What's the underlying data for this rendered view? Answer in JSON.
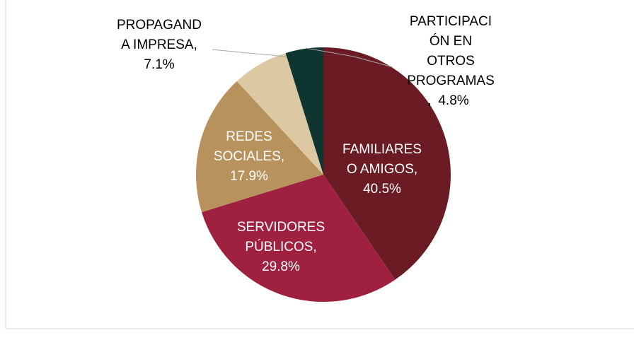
{
  "chart_data": {
    "type": "pie",
    "categories": [
      "FAMILIARES\nO AMIGOS,",
      "SERVIDORES\nPÚBLICOS,",
      "REDES\nSOCIALES,",
      "PROPAGAND\nA IMPRESA,",
      "PARTICIPACI\nÓN EN\nOTROS\nPROGRAMAS\n,"
    ],
    "values": [
      40.5,
      29.8,
      17.9,
      7.1,
      4.8
    ],
    "value_labels": [
      "40.5%",
      "29.8%",
      "17.9%",
      "7.1%",
      "4.8%"
    ],
    "colors": [
      "#6a1b23",
      "#a0203f",
      "#b8925c",
      "#dcc8a2",
      "#0f3531"
    ],
    "label_colors": [
      "#ffffff",
      "#ffffff",
      "#ffffff",
      "#000000",
      "#000000"
    ]
  }
}
